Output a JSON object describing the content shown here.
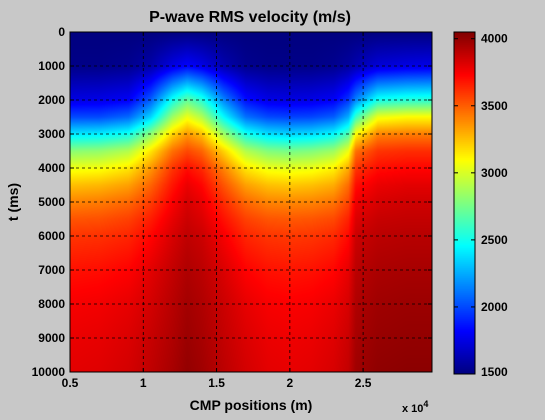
{
  "chart_data": {
    "type": "heatmap",
    "title": "P-wave RMS velocity (m/s)",
    "xlabel": "CMP positions (m)",
    "ylabel": "t (ms)",
    "x_exponent_label": "x 10",
    "x_exponent_power": "4",
    "xlim": [
      0.5,
      2.97
    ],
    "ylim": [
      0,
      10000
    ],
    "y_reversed": true,
    "x_ticks": [
      0.5,
      1,
      1.5,
      2,
      2.5
    ],
    "x_tick_labels": [
      "0.5",
      "1",
      "1.5",
      "2",
      "2.5"
    ],
    "y_ticks": [
      0,
      1000,
      2000,
      3000,
      4000,
      5000,
      6000,
      7000,
      8000,
      9000,
      10000
    ],
    "y_tick_labels": [
      "0",
      "1000",
      "2000",
      "3000",
      "4000",
      "5000",
      "6000",
      "7000",
      "8000",
      "9000",
      "10000"
    ],
    "grid": true,
    "colormap": "jet",
    "clim": [
      1500,
      4050
    ],
    "colorbar_ticks": [
      1500,
      2000,
      2500,
      3000,
      3500,
      4000
    ],
    "colorbar_tick_labels": [
      "1500",
      "2000",
      "2500",
      "3000",
      "3500",
      "4000"
    ],
    "grid_x": [
      0.5,
      0.7,
      0.9,
      1.05,
      1.2,
      1.3,
      1.4,
      1.55,
      1.7,
      1.85,
      2.0,
      2.15,
      2.3,
      2.4,
      2.45,
      2.6,
      2.8,
      2.97
    ],
    "grid_t": [
      0,
      1000,
      2000,
      2500,
      3000,
      3500,
      4000,
      4500,
      5000,
      5500,
      6000,
      7000,
      8000,
      9000,
      10000
    ],
    "values": [
      [
        1500,
        1500,
        1500,
        1500,
        1500,
        1500,
        1500,
        1500,
        1500,
        1500,
        1500,
        1500,
        1500,
        1500,
        1500,
        1500,
        1500,
        1500
      ],
      [
        1520,
        1520,
        1540,
        1600,
        1750,
        1820,
        1760,
        1620,
        1540,
        1520,
        1520,
        1520,
        1540,
        1580,
        1620,
        1720,
        1750,
        1760
      ],
      [
        1750,
        1760,
        1800,
        2050,
        2500,
        2700,
        2550,
        2150,
        1850,
        1760,
        1750,
        1760,
        1800,
        1950,
        2150,
        2500,
        2550,
        2560
      ],
      [
        2000,
        2000,
        2080,
        2350,
        2850,
        3050,
        2900,
        2450,
        2100,
        2000,
        1980,
        1990,
        2050,
        2250,
        2600,
        3050,
        3100,
        3100
      ],
      [
        2400,
        2420,
        2500,
        2800,
        3200,
        3350,
        3250,
        2850,
        2500,
        2380,
        2350,
        2370,
        2450,
        2650,
        3100,
        3400,
        3420,
        3420
      ],
      [
        2800,
        2820,
        2900,
        3150,
        3450,
        3550,
        3480,
        3200,
        2900,
        2780,
        2750,
        2780,
        2850,
        3050,
        3450,
        3600,
        3620,
        3620
      ],
      [
        3050,
        3070,
        3150,
        3350,
        3600,
        3700,
        3630,
        3400,
        3150,
        3050,
        3030,
        3050,
        3120,
        3300,
        3600,
        3700,
        3720,
        3720
      ],
      [
        3250,
        3270,
        3330,
        3480,
        3680,
        3780,
        3720,
        3520,
        3330,
        3250,
        3230,
        3250,
        3300,
        3460,
        3700,
        3780,
        3800,
        3800
      ],
      [
        3400,
        3420,
        3470,
        3580,
        3740,
        3830,
        3780,
        3620,
        3470,
        3400,
        3390,
        3400,
        3440,
        3560,
        3770,
        3830,
        3850,
        3850
      ],
      [
        3520,
        3530,
        3570,
        3660,
        3790,
        3860,
        3820,
        3690,
        3570,
        3520,
        3510,
        3520,
        3550,
        3650,
        3820,
        3870,
        3880,
        3880
      ],
      [
        3600,
        3610,
        3640,
        3720,
        3830,
        3890,
        3860,
        3750,
        3640,
        3600,
        3590,
        3600,
        3630,
        3710,
        3860,
        3900,
        3910,
        3910
      ],
      [
        3690,
        3700,
        3730,
        3800,
        3880,
        3930,
        3900,
        3820,
        3730,
        3690,
        3680,
        3690,
        3720,
        3790,
        3900,
        3940,
        3950,
        3950
      ],
      [
        3750,
        3760,
        3790,
        3840,
        3910,
        3960,
        3930,
        3860,
        3790,
        3750,
        3740,
        3750,
        3780,
        3830,
        3930,
        3970,
        3980,
        3980
      ],
      [
        3780,
        3790,
        3820,
        3870,
        3930,
        3980,
        3950,
        3880,
        3820,
        3780,
        3770,
        3780,
        3810,
        3860,
        3950,
        3990,
        4000,
        4000
      ],
      [
        3800,
        3810,
        3840,
        3890,
        3950,
        4000,
        3970,
        3900,
        3840,
        3800,
        3790,
        3800,
        3830,
        3880,
        3970,
        4010,
        4020,
        4020
      ]
    ]
  }
}
